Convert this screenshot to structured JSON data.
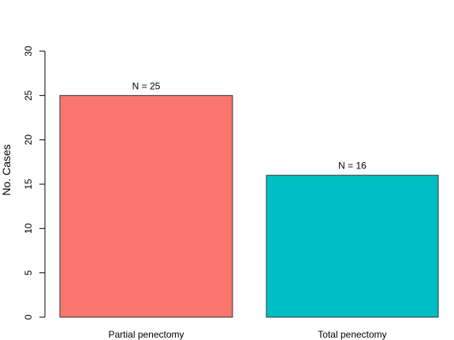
{
  "chart_data": {
    "type": "bar",
    "title": "",
    "xlabel": "",
    "ylabel": "No. Cases",
    "ylim": [
      0,
      30
    ],
    "yticks": [
      0,
      5,
      10,
      15,
      20,
      25,
      30
    ],
    "categories": [
      "Partial penectomy",
      "Total penectomy"
    ],
    "values": [
      25,
      16
    ],
    "data_labels": [
      "N = 25",
      "N = 16"
    ],
    "colors": [
      "#f8766d",
      "#00bfc4"
    ],
    "grid": false,
    "legend": "none"
  }
}
